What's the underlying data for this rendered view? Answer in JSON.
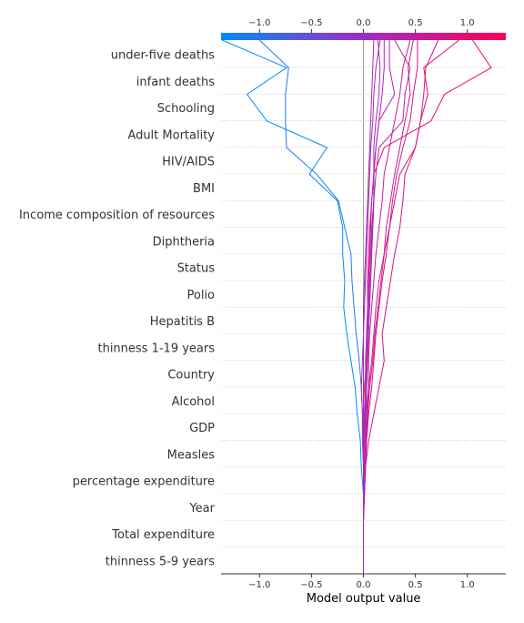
{
  "chart_data": {
    "type": "line",
    "subtype": "shap-decision-plot",
    "xlabel": "Model output value",
    "xlim": [
      -1.37,
      1.37
    ],
    "x_ticks": [
      -1.0,
      -0.5,
      0.0,
      0.5,
      1.0
    ],
    "x_tick_labels": [
      "−1.0",
      "−0.5",
      "0.0",
      "0.5",
      "1.0"
    ],
    "base_value": 0.0,
    "grid": "dotted horizontal lines between features",
    "colorbar": {
      "position": "top",
      "low_color": "#008bfb",
      "high_color": "#ff0051",
      "mid_color": "#9d2dc7"
    },
    "features": [
      "under-five deaths",
      "infant deaths",
      "Schooling",
      "Adult Mortality",
      "HIV/AIDS",
      "BMI",
      "Income composition of resources",
      "Diphtheria",
      "Status",
      "Polio",
      "Hepatitis B",
      "thinness  1-19 years",
      "Country",
      "Alcohol",
      "GDP",
      "Measles",
      "percentage expenditure",
      "Year",
      "Total expenditure",
      "thinness 5-9 years"
    ],
    "series": [
      {
        "values": [
          0.0,
          0.0,
          0.0,
          0.0,
          -0.02,
          -0.03,
          -0.06,
          -0.08,
          -0.12,
          -0.16,
          -0.19,
          -0.18,
          -0.2,
          -0.2,
          -0.25,
          -0.52,
          -0.35,
          -0.93,
          -1.12,
          -0.74,
          -1.36
        ]
      },
      {
        "values": [
          0.0,
          0.0,
          0.0,
          0.0,
          0.0,
          0.0,
          -0.01,
          -0.02,
          -0.04,
          -0.07,
          -0.09,
          -0.11,
          -0.12,
          -0.18,
          -0.24,
          -0.45,
          -0.74,
          -0.75,
          -0.75,
          -0.72,
          -1.0
        ]
      },
      {
        "values": [
          0.0,
          0.0,
          0.0,
          0.0,
          0.0,
          0.01,
          0.02,
          0.01,
          0.03,
          0.04,
          0.04,
          0.04,
          0.05,
          0.06,
          0.08,
          0.1,
          0.2,
          0.65,
          0.78,
          1.23,
          1.05
        ]
      },
      {
        "values": [
          0.0,
          0.0,
          0.0,
          0.01,
          0.02,
          0.03,
          0.05,
          0.08,
          0.1,
          0.12,
          0.15,
          0.18,
          0.22,
          0.25,
          0.3,
          0.35,
          0.5,
          0.55,
          0.62,
          0.58,
          0.92
        ]
      },
      {
        "values": [
          0.0,
          0.0,
          0.0,
          0.01,
          0.02,
          0.05,
          0.1,
          0.15,
          0.2,
          0.18,
          0.22,
          0.26,
          0.3,
          0.35,
          0.38,
          0.4,
          0.5,
          0.55,
          0.58,
          0.6,
          0.72
        ]
      },
      {
        "values": [
          0.0,
          0.0,
          0.0,
          0.0,
          0.01,
          0.02,
          0.03,
          0.05,
          0.08,
          0.1,
          0.12,
          0.15,
          0.2,
          0.25,
          0.28,
          0.32,
          0.38,
          0.45,
          0.48,
          0.52,
          0.52
        ]
      },
      {
        "values": [
          0.0,
          0.0,
          0.0,
          0.0,
          0.01,
          0.02,
          0.04,
          0.06,
          0.09,
          0.11,
          0.14,
          0.17,
          0.2,
          0.22,
          0.26,
          0.3,
          0.35,
          0.4,
          0.45,
          0.43,
          0.48
        ]
      },
      {
        "values": [
          0.0,
          0.0,
          0.0,
          0.01,
          0.02,
          0.03,
          0.04,
          0.05,
          0.05,
          0.06,
          0.08,
          0.1,
          0.12,
          0.15,
          0.18,
          0.2,
          0.25,
          0.3,
          0.35,
          0.38,
          0.45
        ]
      },
      {
        "values": [
          0.0,
          0.0,
          0.0,
          0.0,
          0.0,
          0.01,
          0.01,
          0.02,
          0.03,
          0.04,
          0.05,
          0.06,
          0.07,
          0.08,
          0.1,
          0.12,
          0.15,
          0.38,
          0.4,
          0.45,
          0.3
        ]
      },
      {
        "values": [
          0.0,
          0.0,
          0.0,
          0.0,
          0.0,
          0.0,
          0.01,
          0.02,
          0.02,
          0.03,
          0.04,
          0.05,
          0.06,
          0.07,
          0.08,
          0.1,
          0.12,
          0.15,
          0.3,
          0.25,
          0.25
        ]
      },
      {
        "values": [
          0.0,
          0.0,
          0.0,
          0.0,
          0.0,
          0.01,
          0.02,
          0.03,
          0.04,
          0.05,
          0.06,
          0.07,
          0.08,
          0.09,
          0.1,
          0.1,
          0.12,
          0.15,
          0.18,
          0.2,
          0.2
        ]
      },
      {
        "values": [
          0.0,
          0.0,
          0.0,
          0.0,
          0.01,
          0.02,
          0.03,
          0.03,
          0.04,
          0.04,
          0.05,
          0.06,
          0.07,
          0.09,
          0.1,
          0.1,
          0.1,
          0.12,
          0.15,
          0.16,
          0.14
        ]
      },
      {
        "values": [
          0.0,
          0.0,
          0.0,
          0.0,
          0.0,
          -0.01,
          -0.01,
          -0.02,
          -0.01,
          0.0,
          0.01,
          0.02,
          0.03,
          0.04,
          0.05,
          0.06,
          0.07,
          0.09,
          0.1,
          0.12,
          0.16
        ]
      },
      {
        "values": [
          0.0,
          0.0,
          0.0,
          0.0,
          0.0,
          0.0,
          0.0,
          0.0,
          0.0,
          0.0,
          0.0,
          0.01,
          0.02,
          0.03,
          0.04,
          0.05,
          0.06,
          0.07,
          0.08,
          0.09,
          0.1
        ]
      }
    ]
  }
}
